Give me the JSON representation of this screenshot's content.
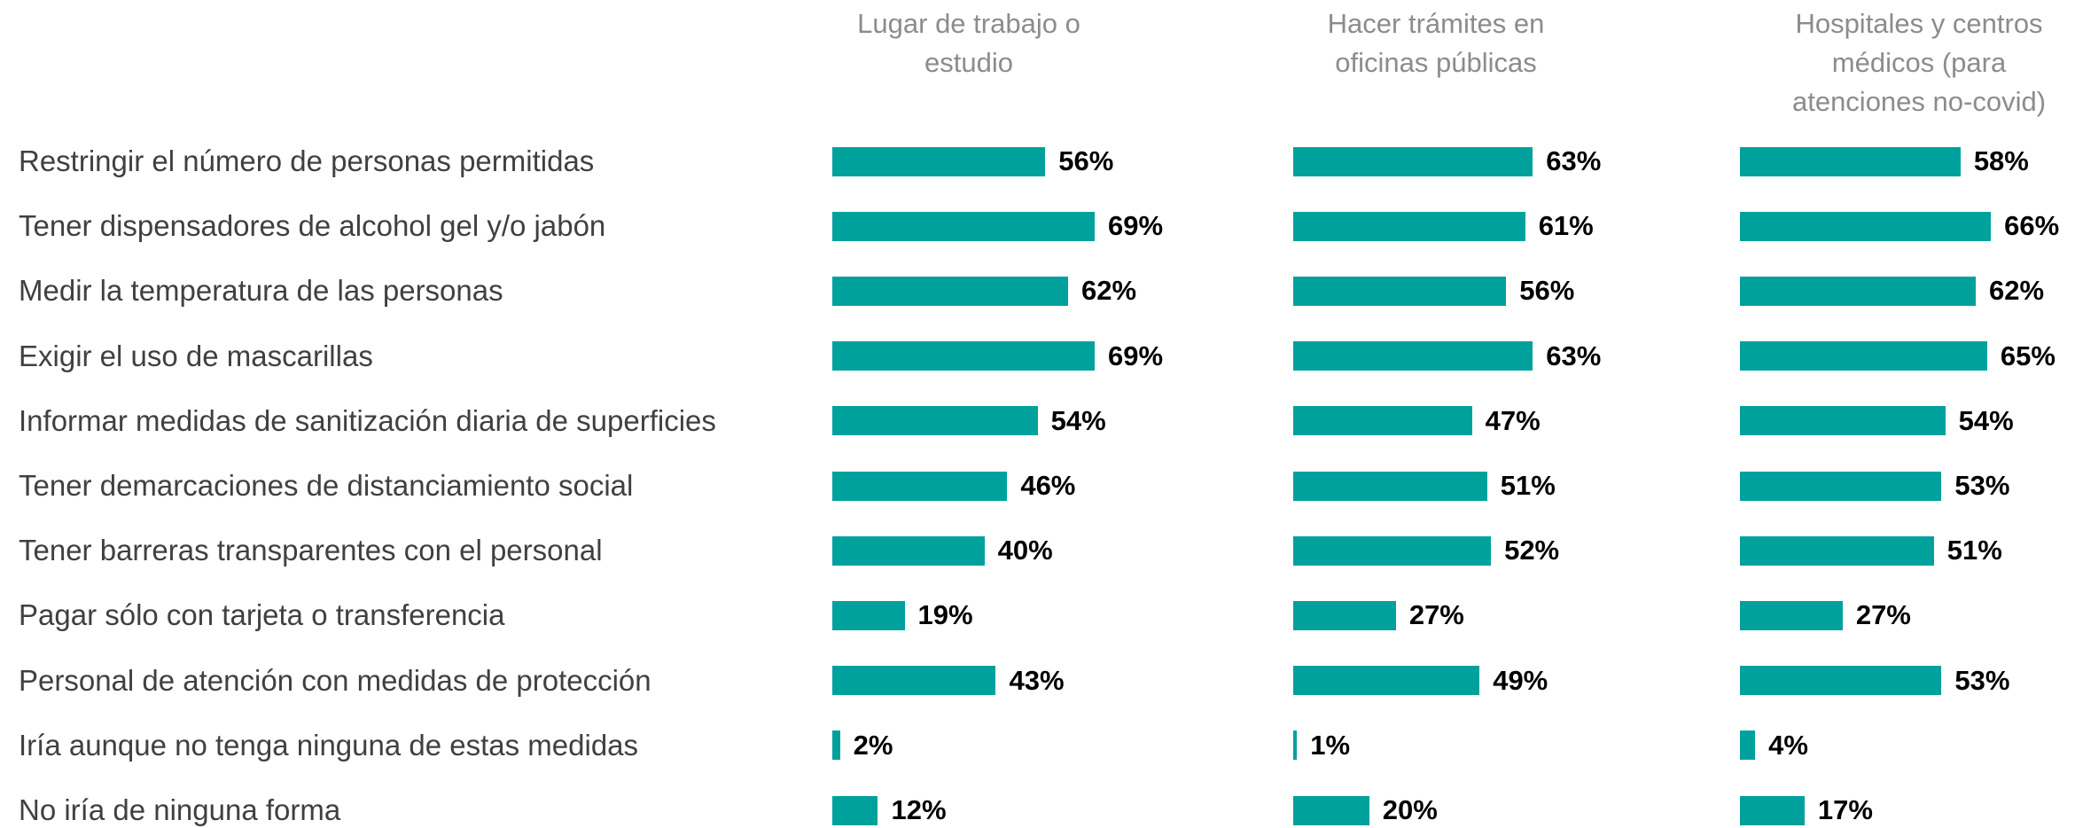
{
  "chart_data": {
    "type": "bar",
    "orientation": "horizontal",
    "categories": [
      "Restringir el número de personas permitidas",
      "Tener dispensadores de alcohol gel y/o jabón",
      "Medir la temperatura de las personas",
      "Exigir el uso de mascarillas",
      "Informar medidas de sanitización diaria de superficies",
      "Tener demarcaciones de distanciamiento social",
      "Tener barreras transparentes con el personal",
      "Pagar sólo con tarjeta o transferencia",
      "Personal de atención con medidas de protección",
      "Iría aunque no tenga ninguna de estas medidas",
      "No iría de ninguna forma"
    ],
    "series": [
      {
        "name": "Lugar de trabajo o estudio",
        "color": "#00a19c",
        "values": [
          56,
          69,
          62,
          69,
          54,
          46,
          40,
          19,
          43,
          2,
          12
        ],
        "value_labels": [
          "56%",
          "69%",
          "62%",
          "69%",
          "54%",
          "46%",
          "40%",
          "19%",
          "43%",
          "2%",
          "12%"
        ]
      },
      {
        "name": "Hacer trámites en oficinas públicas",
        "color": "#00a19c",
        "values": [
          63,
          61,
          56,
          63,
          47,
          51,
          52,
          27,
          49,
          1,
          20
        ],
        "value_labels": [
          "63%",
          "61%",
          "56%",
          "63%",
          "47%",
          "51%",
          "52%",
          "27%",
          "49%",
          "1%",
          "20%"
        ]
      },
      {
        "name": "Hospitales y centros médicos (para atenciones no-covid)",
        "color": "#00a19c",
        "values": [
          58,
          66,
          62,
          65,
          54,
          53,
          51,
          27,
          53,
          4,
          17
        ],
        "value_labels": [
          "58%",
          "66%",
          "62%",
          "65%",
          "54%",
          "53%",
          "51%",
          "27%",
          "53%",
          "4%",
          "17%"
        ]
      }
    ]
  }
}
